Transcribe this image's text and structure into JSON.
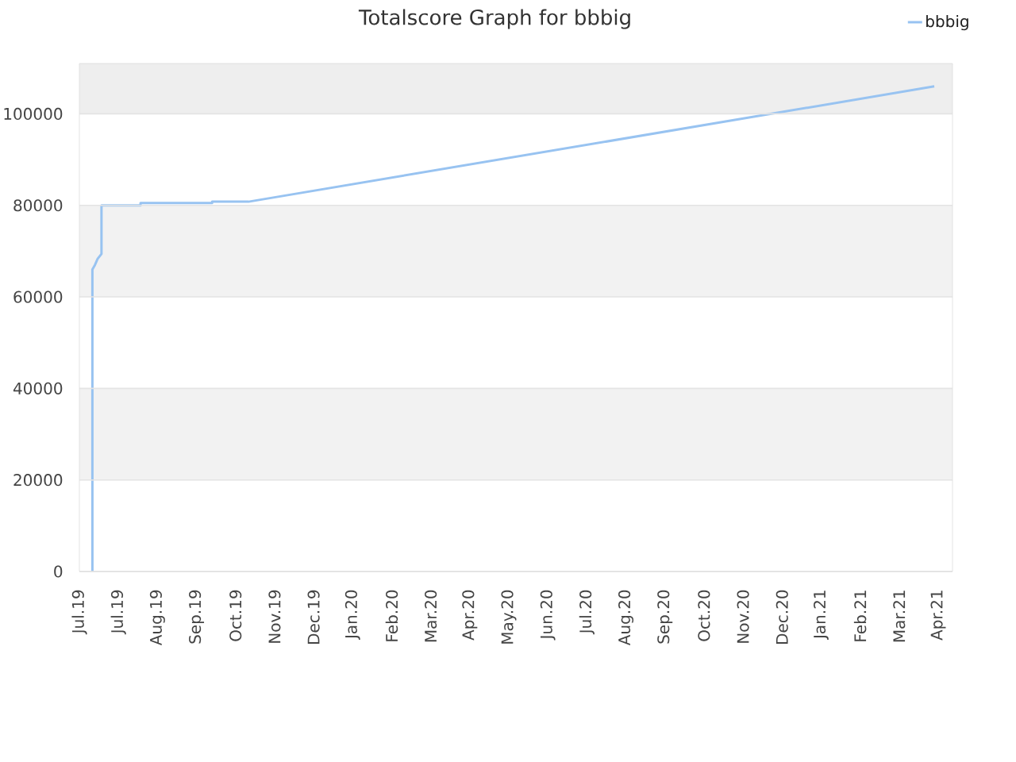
{
  "chart_data": {
    "type": "line",
    "title": "Totalscore Graph for bbbig",
    "x": [
      "2019-07-11",
      "2019-07-11",
      "2019-07-13",
      "2019-07-15",
      "2019-07-18",
      "2019-07-18",
      "2019-08-17",
      "2019-08-17",
      "2019-10-11",
      "2019-10-11",
      "2019-11-08",
      "2021-04-18"
    ],
    "series": [
      {
        "name": "bbbig",
        "color": "#98c3f1",
        "values": [
          0,
          66000,
          67000,
          68300,
          69400,
          80000,
          80000,
          80500,
          80500,
          80800,
          80800,
          106000
        ]
      }
    ],
    "xlim": [
      "2019-07-01",
      "2021-05-02"
    ],
    "xticks": [
      {
        "value": "2019-07-01",
        "label": "Jul.19"
      },
      {
        "value": "2019-07-31",
        "label": "Jul.19"
      },
      {
        "value": "2019-08-30",
        "label": "Aug.19"
      },
      {
        "value": "2019-09-29",
        "label": "Sep.19"
      },
      {
        "value": "2019-10-29",
        "label": "Oct.19"
      },
      {
        "value": "2019-11-28",
        "label": "Nov.19"
      },
      {
        "value": "2019-12-28",
        "label": "Dec.19"
      },
      {
        "value": "2020-01-27",
        "label": "Jan.20"
      },
      {
        "value": "2020-02-26",
        "label": "Feb.20"
      },
      {
        "value": "2020-03-27",
        "label": "Mar.20"
      },
      {
        "value": "2020-04-26",
        "label": "Apr.20"
      },
      {
        "value": "2020-05-26",
        "label": "May.20"
      },
      {
        "value": "2020-06-25",
        "label": "Jun.20"
      },
      {
        "value": "2020-07-25",
        "label": "Jul.20"
      },
      {
        "value": "2020-08-24",
        "label": "Aug.20"
      },
      {
        "value": "2020-09-23",
        "label": "Sep.20"
      },
      {
        "value": "2020-10-23",
        "label": "Oct.20"
      },
      {
        "value": "2020-11-22",
        "label": "Nov.20"
      },
      {
        "value": "2020-12-22",
        "label": "Dec.20"
      },
      {
        "value": "2021-01-21",
        "label": "Jan.21"
      },
      {
        "value": "2021-02-20",
        "label": "Feb.21"
      },
      {
        "value": "2021-03-22",
        "label": "Mar.21"
      },
      {
        "value": "2021-04-21",
        "label": "Apr.21"
      }
    ],
    "ylim": [
      0,
      111000
    ],
    "yticks": [
      0,
      20000,
      40000,
      60000,
      80000,
      100000
    ],
    "bands": [
      {
        "axis": "y",
        "from": 100000,
        "to": 111000,
        "color": "#eeeeee"
      },
      {
        "axis": "y",
        "from": 60000,
        "to": 80000,
        "color": "#f2f2f2"
      },
      {
        "axis": "y",
        "from": 20000,
        "to": 40000,
        "color": "#f2f2f2"
      }
    ],
    "grid": "y",
    "legend": "top right"
  }
}
